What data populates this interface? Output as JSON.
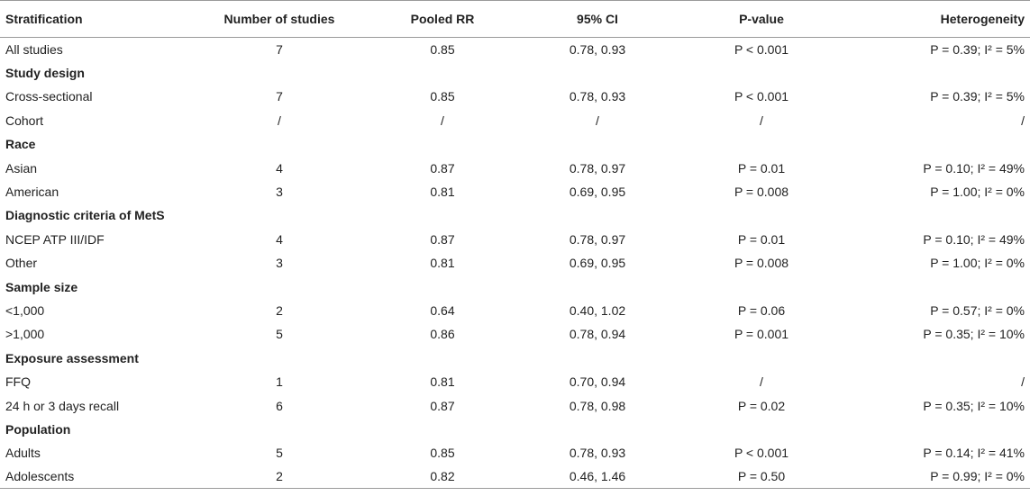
{
  "headers": [
    "Stratification",
    "Number of studies",
    "Pooled RR",
    "95% CI",
    "P-value",
    "Heterogeneity"
  ],
  "rows": [
    {
      "type": "data",
      "cells": [
        "All studies",
        "7",
        "0.85",
        "0.78, 0.93",
        "P < 0.001",
        "P = 0.39; I² = 5%"
      ]
    },
    {
      "type": "group",
      "label": "Study design"
    },
    {
      "type": "data",
      "cells": [
        "Cross-sectional",
        "7",
        "0.85",
        "0.78, 0.93",
        "P < 0.001",
        "P = 0.39; I² = 5%"
      ]
    },
    {
      "type": "data",
      "cells": [
        "Cohort",
        "/",
        "/",
        "/",
        "/",
        "/"
      ]
    },
    {
      "type": "group",
      "label": "Race"
    },
    {
      "type": "data",
      "cells": [
        "Asian",
        "4",
        "0.87",
        "0.78, 0.97",
        "P = 0.01",
        "P = 0.10; I² = 49%"
      ]
    },
    {
      "type": "data",
      "cells": [
        "American",
        "3",
        "0.81",
        "0.69, 0.95",
        "P = 0.008",
        "P = 1.00; I² = 0%"
      ]
    },
    {
      "type": "group",
      "label": "Diagnostic criteria of MetS"
    },
    {
      "type": "data",
      "cells": [
        "NCEP ATP III/IDF",
        "4",
        "0.87",
        "0.78, 0.97",
        "P = 0.01",
        "P = 0.10; I² = 49%"
      ]
    },
    {
      "type": "data",
      "cells": [
        "Other",
        "3",
        "0.81",
        "0.69, 0.95",
        "P = 0.008",
        "P = 1.00; I² = 0%"
      ]
    },
    {
      "type": "group",
      "label": "Sample size"
    },
    {
      "type": "data",
      "cells": [
        "<1,000",
        "2",
        "0.64",
        "0.40, 1.02",
        "P = 0.06",
        "P = 0.57; I² = 0%"
      ]
    },
    {
      "type": "data",
      "cells": [
        ">1,000",
        "5",
        "0.86",
        "0.78, 0.94",
        "P = 0.001",
        "P = 0.35; I² = 10%"
      ]
    },
    {
      "type": "group",
      "label": "Exposure assessment"
    },
    {
      "type": "data",
      "cells": [
        "FFQ",
        "1",
        "0.81",
        "0.70, 0.94",
        "/",
        "/"
      ]
    },
    {
      "type": "data",
      "cells": [
        "24 h or 3 days recall",
        "6",
        "0.87",
        "0.78, 0.98",
        "P = 0.02",
        "P = 0.35; I² = 10%"
      ]
    },
    {
      "type": "group",
      "label": "Population"
    },
    {
      "type": "data",
      "cells": [
        "Adults",
        "5",
        "0.85",
        "0.78, 0.93",
        "P < 0.001",
        "P = 0.14; I² = 41%"
      ]
    },
    {
      "type": "data",
      "cells": [
        "Adolescents",
        "2",
        "0.82",
        "0.46, 1.46",
        "P = 0.50",
        "P = 0.99; I² = 0%"
      ]
    }
  ]
}
